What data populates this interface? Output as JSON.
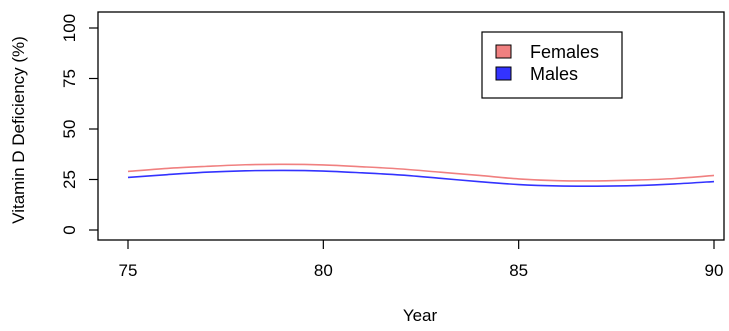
{
  "chart_data": {
    "type": "line",
    "title": "",
    "xlabel": "Year",
    "ylabel": "Vitamin D Deficiency (%)",
    "xlim": [
      75,
      90
    ],
    "ylim": [
      0,
      100
    ],
    "x_ticks": [
      75,
      80,
      85,
      90
    ],
    "y_ticks": [
      0,
      25,
      50,
      75,
      100
    ],
    "grid": false,
    "legend_position": "top-right",
    "colors": {
      "Females": "#f08080",
      "Males": "#3333ff"
    },
    "series": [
      {
        "name": "Females",
        "x": [
          75,
          76,
          77,
          78,
          79,
          80,
          81,
          82,
          83,
          84,
          85,
          86,
          87,
          88,
          89,
          90
        ],
        "values": [
          29,
          30.5,
          31.5,
          32.3,
          32.5,
          32.2,
          31.3,
          30.2,
          28.6,
          27,
          25.3,
          24.4,
          24.3,
          24.7,
          25.5,
          27
        ]
      },
      {
        "name": "Males",
        "x": [
          75,
          76,
          77,
          78,
          79,
          80,
          81,
          82,
          83,
          84,
          85,
          86,
          87,
          88,
          89,
          90
        ],
        "values": [
          26,
          27.4,
          28.6,
          29.3,
          29.5,
          29.2,
          28.3,
          27.2,
          25.6,
          23.9,
          22.5,
          21.8,
          21.7,
          22,
          22.8,
          24
        ]
      }
    ]
  }
}
